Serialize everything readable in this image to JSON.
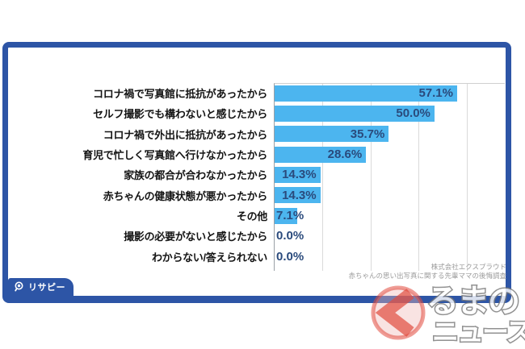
{
  "chart_data": {
    "type": "bar",
    "orientation": "horizontal",
    "title": "",
    "xlabel": "",
    "ylabel": "",
    "unit": "%",
    "xlim": [
      0,
      72
    ],
    "gridline_ticks": [
      15,
      30,
      45,
      60
    ],
    "grid": "vertical-lines-on",
    "legend": "none",
    "categories": [
      "コロナ禍で写真館に抵抗があったから",
      "セルフ撮影でも構わないと感じたから",
      "コロナ禍で外出に抵抗があったから",
      "育児で忙しく写真館へ行けなかったから",
      "家族の都合が合わなかったから",
      "赤ちゃんの健康状態が悪かったから",
      "その他",
      "撮影の必要がないと感じたから",
      "わからない/答えられない"
    ],
    "values": [
      57.1,
      50.0,
      35.7,
      28.6,
      14.3,
      14.3,
      7.1,
      0.0,
      0.0
    ],
    "source_line1": "株式会社エクスプラウド",
    "source_line2": "赤ちゃんの思い出写真に関する先輩ママの後悔調査"
  },
  "branding": {
    "risapee_label": "リサピー",
    "watermark_line1": "るまの",
    "watermark_line2": "ニュース"
  },
  "colors": {
    "frame_blue": "#2d55a6",
    "bar_blue": "#4cb5ef",
    "value_navy": "#2a4a7c",
    "watermark_red": "#e14b3e",
    "source_gray": "#9b9b9b"
  }
}
